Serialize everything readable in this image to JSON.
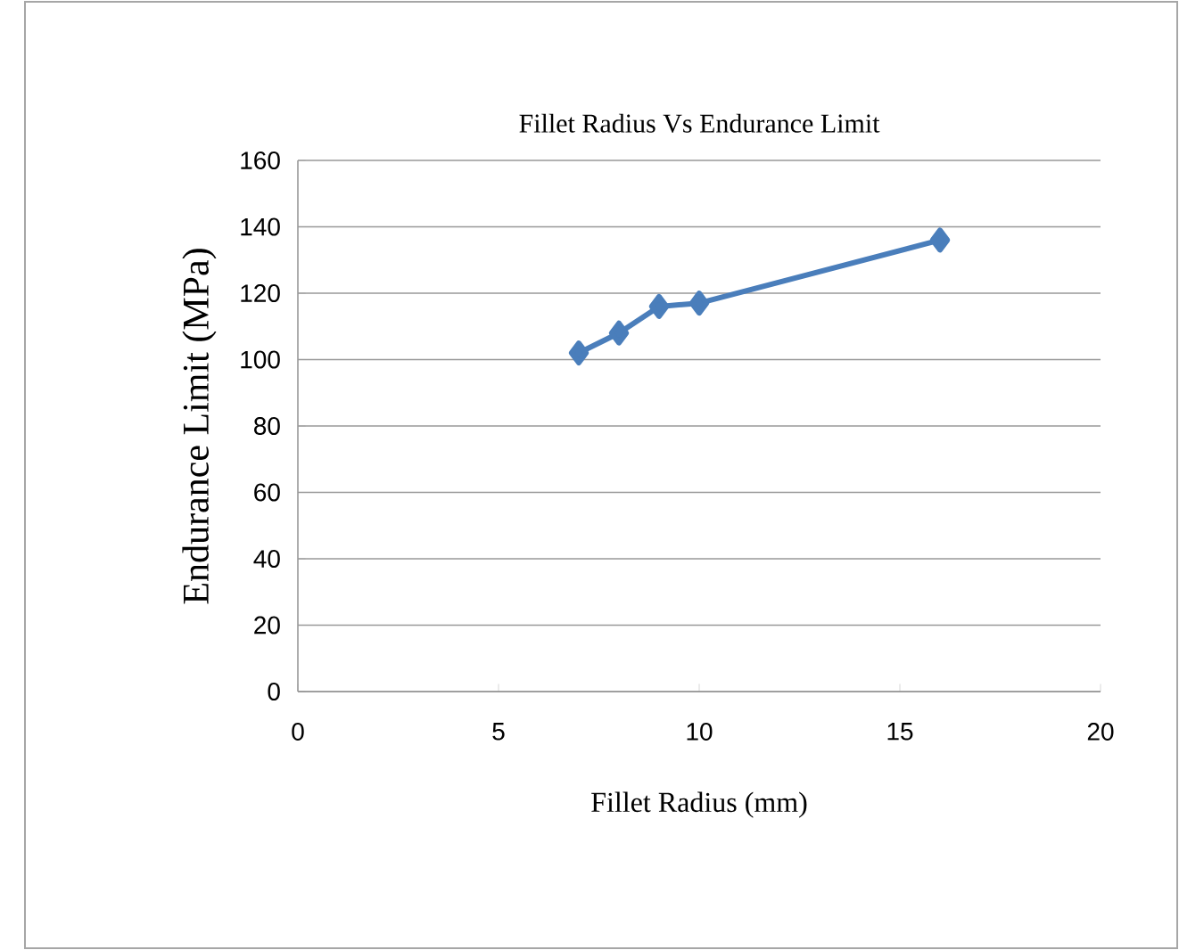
{
  "chart_data": {
    "type": "line",
    "title": "Fillet Radius Vs Endurance Limit",
    "xlabel": "Fillet Radius (mm)",
    "ylabel": "Endurance Limit  (MPa)",
    "x": [
      7,
      8,
      9,
      10,
      16
    ],
    "series": [
      {
        "color": "#4a7ebb",
        "values": [
          102,
          108,
          116,
          117,
          136
        ]
      }
    ],
    "xlim": [
      0,
      20
    ],
    "ylim": [
      0,
      160
    ],
    "xticks": [
      0,
      5,
      10,
      15,
      20
    ],
    "yticks": [
      0,
      20,
      40,
      60,
      80,
      100,
      120,
      140,
      160
    ],
    "grid": "y",
    "marker": "diamond",
    "line_style": "solid"
  }
}
